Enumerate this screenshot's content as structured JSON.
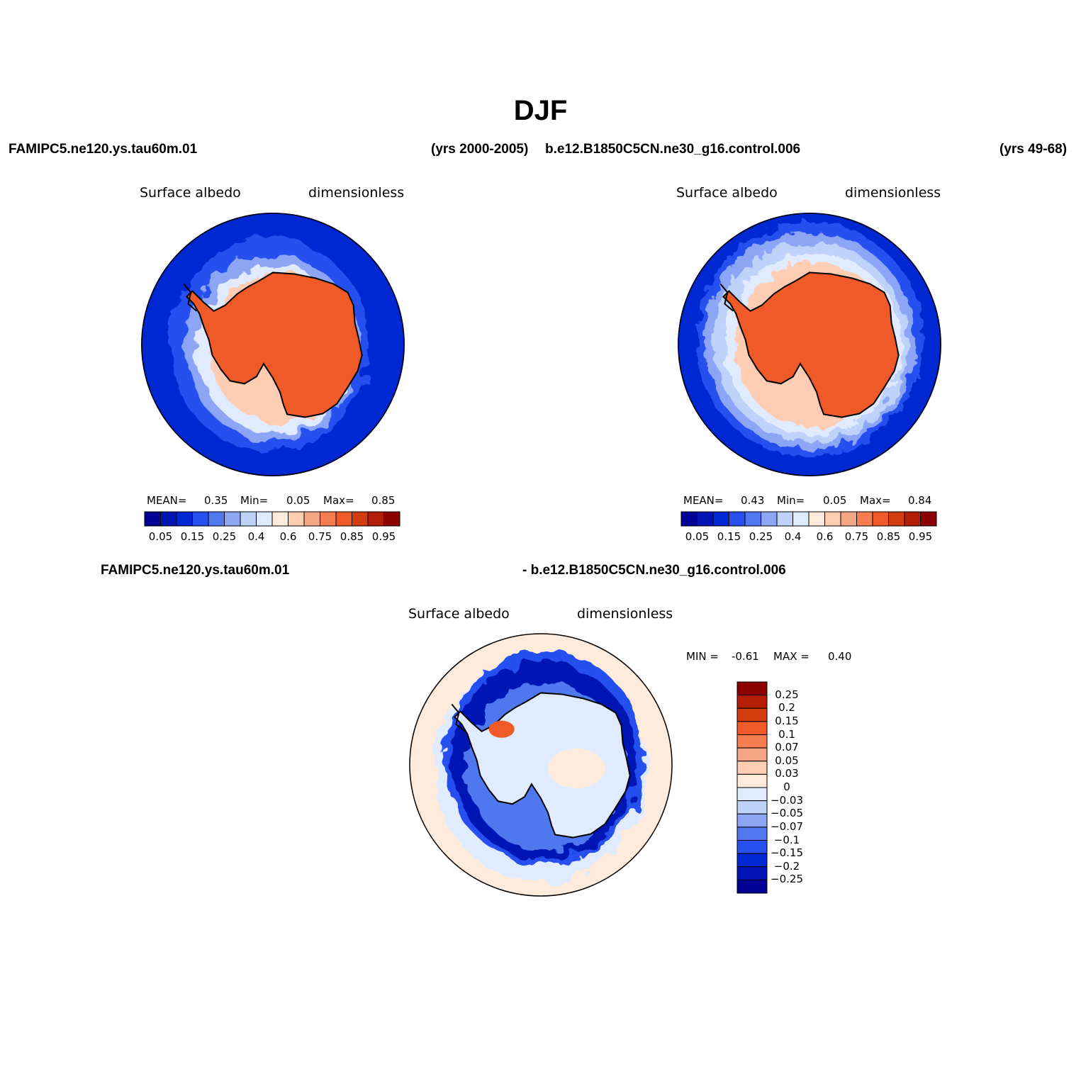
{
  "title": "DJF",
  "header": {
    "case1_name": "FAMIPC5.ne120.ys.tau60m.01",
    "case1_years": "(yrs 2000-2005)",
    "case2_name": "b.e12.B1850C5CN.ne30_g16.control.006",
    "case2_years": "(yrs 49-68)"
  },
  "panels": [
    {
      "variable": "Surface albedo",
      "units": "dimensionless",
      "stats": {
        "mean_label": "MEAN=",
        "mean": "0.35",
        "min_label": "Min=",
        "min": "0.05",
        "max_label": "Max=",
        "max": "0.85"
      }
    },
    {
      "variable": "Surface albedo",
      "units": "dimensionless",
      "stats": {
        "mean_label": "MEAN=",
        "mean": "0.43",
        "min_label": "Min=",
        "min": "0.05",
        "max_label": "Max=",
        "max": "0.84"
      }
    }
  ],
  "diff": {
    "case1_name": "FAMIPC5.ne120.ys.tau60m.01",
    "case2_name": "- b.e12.B1850C5CN.ne30_g16.control.006",
    "variable": "Surface albedo",
    "units": "dimensionless",
    "min_label": "MIN =",
    "min": "-0.61",
    "max_label": "MAX =",
    "max": "0.40"
  },
  "abs_colorbar": {
    "colors": [
      "#000096",
      "#0014b4",
      "#0028d2",
      "#2850f0",
      "#5078f0",
      "#8ca5f5",
      "#bed2fa",
      "#e1ebff",
      "#ffebdc",
      "#ffcdb4",
      "#f5a582",
      "#f57d50",
      "#f05a28",
      "#d23c0f",
      "#b41e05",
      "#8c0000"
    ],
    "labels": [
      "0.05",
      "0.15",
      "0.25",
      "0.4",
      "0.6",
      "0.75",
      "0.85",
      "0.95"
    ]
  },
  "diff_colorbar": {
    "colors": [
      "#8c0000",
      "#b41e05",
      "#d23c0f",
      "#f05a28",
      "#f57d50",
      "#f5a582",
      "#ffcdb4",
      "#ffebdc",
      "#e1ebff",
      "#bed2fa",
      "#8ca5f5",
      "#5078f0",
      "#2850f0",
      "#0028d2",
      "#0014b4",
      "#000096"
    ],
    "labels": [
      "0.25",
      "0.2",
      "0.15",
      "0.1",
      "0.07",
      "0.05",
      "0.03",
      "0",
      "-0.03",
      "-0.05",
      "-0.07",
      "-0.1",
      "-0.15",
      "-0.2",
      "-0.25"
    ]
  }
}
